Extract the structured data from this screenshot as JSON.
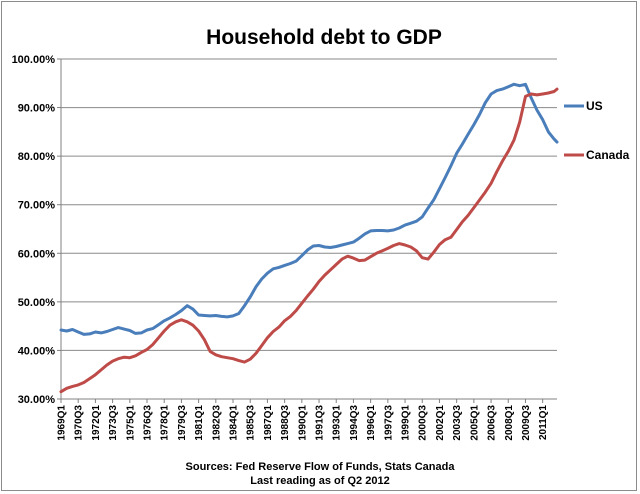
{
  "chart_data": {
    "type": "line",
    "title": "Household debt to GDP",
    "xlabel": "",
    "ylabel": "",
    "x_tick_labels": [
      "1969Q1",
      "1970Q3",
      "1972Q1",
      "1973Q3",
      "1975Q1",
      "1976Q3",
      "1978Q1",
      "1979Q3",
      "1981Q1",
      "1982Q3",
      "1984Q1",
      "1985Q3",
      "1987Q1",
      "1988Q3",
      "1990Q1",
      "1991Q3",
      "1993Q1",
      "1994Q3",
      "1996Q1",
      "1997Q3",
      "1999Q1",
      "2000Q3",
      "2002Q1",
      "2003Q3",
      "2005Q1",
      "2006Q3",
      "2008Q1",
      "2009Q3",
      "2011Q1"
    ],
    "y_tick_labels": [
      "30.00%",
      "40.00%",
      "50.00%",
      "60.00%",
      "70.00%",
      "80.00%",
      "90.00%",
      "100.00%"
    ],
    "ylim": [
      30,
      100
    ],
    "xlim": [
      1969.0,
      2012.25
    ],
    "grid": true,
    "legend_position": "right",
    "series": [
      {
        "name": "US",
        "color": "#4a7ebb",
        "points": [
          [
            1969.0,
            44.2
          ],
          [
            1969.5,
            44.0
          ],
          [
            1970.0,
            44.3
          ],
          [
            1970.5,
            43.8
          ],
          [
            1971.0,
            43.3
          ],
          [
            1971.5,
            43.4
          ],
          [
            1972.0,
            43.8
          ],
          [
            1972.5,
            43.6
          ],
          [
            1973.0,
            43.9
          ],
          [
            1973.5,
            44.3
          ],
          [
            1974.0,
            44.7
          ],
          [
            1974.5,
            44.4
          ],
          [
            1975.0,
            44.1
          ],
          [
            1975.5,
            43.5
          ],
          [
            1976.0,
            43.6
          ],
          [
            1976.5,
            44.2
          ],
          [
            1977.0,
            44.5
          ],
          [
            1977.5,
            45.3
          ],
          [
            1978.0,
            46.1
          ],
          [
            1978.5,
            46.7
          ],
          [
            1979.0,
            47.4
          ],
          [
            1979.5,
            48.2
          ],
          [
            1980.0,
            49.2
          ],
          [
            1980.5,
            48.5
          ],
          [
            1981.0,
            47.3
          ],
          [
            1981.5,
            47.2
          ],
          [
            1982.0,
            47.1
          ],
          [
            1982.5,
            47.2
          ],
          [
            1983.0,
            47.0
          ],
          [
            1983.5,
            46.9
          ],
          [
            1984.0,
            47.1
          ],
          [
            1984.5,
            47.6
          ],
          [
            1985.0,
            49.2
          ],
          [
            1985.5,
            51.0
          ],
          [
            1986.0,
            53.1
          ],
          [
            1986.5,
            54.7
          ],
          [
            1987.0,
            55.9
          ],
          [
            1987.5,
            56.8
          ],
          [
            1988.0,
            57.1
          ],
          [
            1988.5,
            57.5
          ],
          [
            1989.0,
            57.9
          ],
          [
            1989.5,
            58.4
          ],
          [
            1990.0,
            59.5
          ],
          [
            1990.5,
            60.7
          ],
          [
            1991.0,
            61.5
          ],
          [
            1991.5,
            61.6
          ],
          [
            1992.0,
            61.3
          ],
          [
            1992.5,
            61.2
          ],
          [
            1993.0,
            61.4
          ],
          [
            1993.5,
            61.7
          ],
          [
            1994.0,
            62.0
          ],
          [
            1994.5,
            62.3
          ],
          [
            1995.0,
            63.1
          ],
          [
            1995.5,
            64.0
          ],
          [
            1996.0,
            64.6
          ],
          [
            1996.5,
            64.7
          ],
          [
            1997.0,
            64.7
          ],
          [
            1997.5,
            64.6
          ],
          [
            1998.0,
            64.8
          ],
          [
            1998.5,
            65.2
          ],
          [
            1999.0,
            65.8
          ],
          [
            1999.5,
            66.2
          ],
          [
            2000.0,
            66.6
          ],
          [
            2000.5,
            67.5
          ],
          [
            2001.0,
            69.3
          ],
          [
            2001.5,
            71.0
          ],
          [
            2002.0,
            73.3
          ],
          [
            2002.5,
            75.6
          ],
          [
            2003.0,
            78.0
          ],
          [
            2003.5,
            80.6
          ],
          [
            2004.0,
            82.5
          ],
          [
            2004.5,
            84.5
          ],
          [
            2005.0,
            86.5
          ],
          [
            2005.5,
            88.6
          ],
          [
            2006.0,
            91.0
          ],
          [
            2006.5,
            92.8
          ],
          [
            2007.0,
            93.5
          ],
          [
            2007.5,
            93.8
          ],
          [
            2008.0,
            94.3
          ],
          [
            2008.5,
            94.8
          ],
          [
            2009.0,
            94.5
          ],
          [
            2009.5,
            94.8
          ],
          [
            2010.0,
            92.0
          ],
          [
            2010.5,
            89.5
          ],
          [
            2011.0,
            87.5
          ],
          [
            2011.5,
            85.0
          ],
          [
            2012.0,
            83.5
          ],
          [
            2012.25,
            82.9
          ]
        ]
      },
      {
        "name": "Canada",
        "color": "#be4b48",
        "points": [
          [
            1969.0,
            31.5
          ],
          [
            1969.5,
            32.2
          ],
          [
            1970.0,
            32.6
          ],
          [
            1970.5,
            32.9
          ],
          [
            1971.0,
            33.4
          ],
          [
            1971.5,
            34.2
          ],
          [
            1972.0,
            35.0
          ],
          [
            1972.5,
            36.0
          ],
          [
            1973.0,
            37.0
          ],
          [
            1973.5,
            37.8
          ],
          [
            1974.0,
            38.3
          ],
          [
            1974.5,
            38.6
          ],
          [
            1975.0,
            38.5
          ],
          [
            1975.5,
            38.9
          ],
          [
            1976.0,
            39.6
          ],
          [
            1976.5,
            40.2
          ],
          [
            1977.0,
            41.2
          ],
          [
            1977.5,
            42.6
          ],
          [
            1978.0,
            44.0
          ],
          [
            1978.5,
            45.2
          ],
          [
            1979.0,
            45.9
          ],
          [
            1979.5,
            46.3
          ],
          [
            1980.0,
            45.9
          ],
          [
            1980.5,
            45.2
          ],
          [
            1981.0,
            44.0
          ],
          [
            1981.5,
            42.2
          ],
          [
            1982.0,
            39.8
          ],
          [
            1982.5,
            39.1
          ],
          [
            1983.0,
            38.7
          ],
          [
            1983.5,
            38.5
          ],
          [
            1984.0,
            38.3
          ],
          [
            1984.5,
            37.9
          ],
          [
            1985.0,
            37.6
          ],
          [
            1985.5,
            38.2
          ],
          [
            1986.0,
            39.4
          ],
          [
            1986.5,
            41.0
          ],
          [
            1987.0,
            42.6
          ],
          [
            1987.5,
            43.9
          ],
          [
            1988.0,
            44.8
          ],
          [
            1988.5,
            46.1
          ],
          [
            1989.0,
            47.0
          ],
          [
            1989.5,
            48.2
          ],
          [
            1990.0,
            49.7
          ],
          [
            1990.5,
            51.2
          ],
          [
            1991.0,
            52.6
          ],
          [
            1991.5,
            54.2
          ],
          [
            1992.0,
            55.5
          ],
          [
            1992.5,
            56.6
          ],
          [
            1993.0,
            57.7
          ],
          [
            1993.5,
            58.8
          ],
          [
            1994.0,
            59.4
          ],
          [
            1994.5,
            59.0
          ],
          [
            1995.0,
            58.5
          ],
          [
            1995.5,
            58.6
          ],
          [
            1996.0,
            59.3
          ],
          [
            1996.5,
            60.0
          ],
          [
            1997.0,
            60.5
          ],
          [
            1997.5,
            61.0
          ],
          [
            1998.0,
            61.6
          ],
          [
            1998.5,
            62.0
          ],
          [
            1999.0,
            61.7
          ],
          [
            1999.5,
            61.3
          ],
          [
            2000.0,
            60.5
          ],
          [
            2000.5,
            59.1
          ],
          [
            2001.0,
            58.8
          ],
          [
            2001.5,
            60.2
          ],
          [
            2002.0,
            61.8
          ],
          [
            2002.5,
            62.8
          ],
          [
            2003.0,
            63.3
          ],
          [
            2003.5,
            64.9
          ],
          [
            2004.0,
            66.5
          ],
          [
            2004.5,
            67.8
          ],
          [
            2005.0,
            69.4
          ],
          [
            2005.5,
            71.0
          ],
          [
            2006.0,
            72.6
          ],
          [
            2006.5,
            74.4
          ],
          [
            2007.0,
            76.8
          ],
          [
            2007.5,
            79.0
          ],
          [
            2008.0,
            81.0
          ],
          [
            2008.5,
            83.3
          ],
          [
            2009.0,
            87.0
          ],
          [
            2009.5,
            92.3
          ],
          [
            2010.0,
            92.8
          ],
          [
            2010.5,
            92.6
          ],
          [
            2011.0,
            92.8
          ],
          [
            2011.5,
            93.0
          ],
          [
            2012.0,
            93.3
          ],
          [
            2012.25,
            93.8
          ]
        ]
      }
    ],
    "annotations": [
      "Sources: Fed Reserve Flow of Funds, Stats Canada",
      "Last reading as of Q2 2012"
    ]
  }
}
